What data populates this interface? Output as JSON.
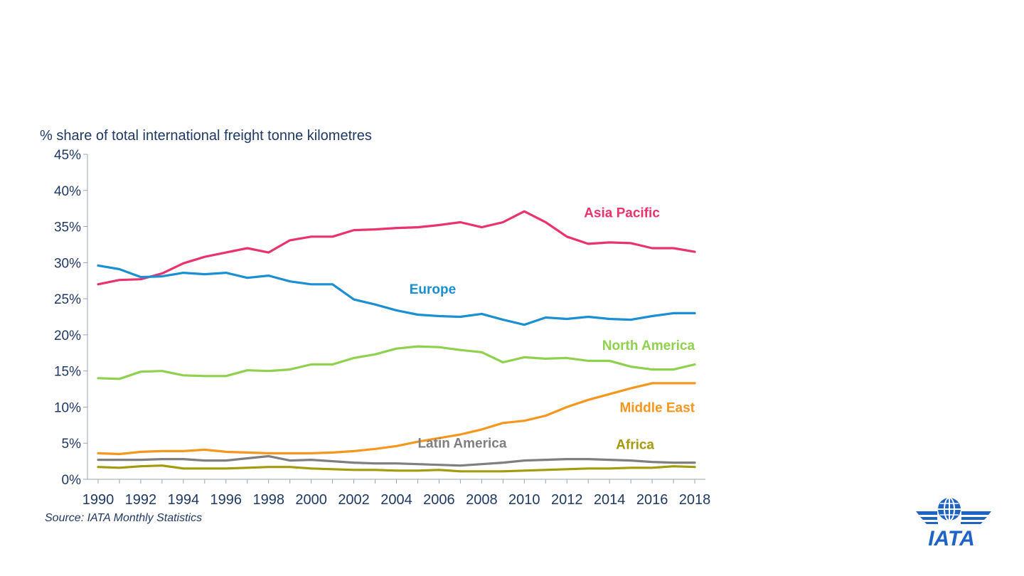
{
  "chart_data": {
    "type": "line",
    "title": "",
    "ylabel": "% share of total international freight tonne kilometres",
    "xlabel": "",
    "ylim": [
      0,
      45
    ],
    "yticks": [
      0,
      5,
      10,
      15,
      20,
      25,
      30,
      35,
      40,
      45
    ],
    "ytick_labels": [
      "0%",
      "5%",
      "10%",
      "15%",
      "20%",
      "25%",
      "30%",
      "35%",
      "40%",
      "45%"
    ],
    "xlim": [
      1989.5,
      2018.5
    ],
    "xticks": [
      1990,
      1992,
      1994,
      1996,
      1998,
      2000,
      2002,
      2004,
      2006,
      2008,
      2010,
      2012,
      2014,
      2016,
      2018
    ],
    "x": [
      1990,
      1991,
      1992,
      1993,
      1994,
      1995,
      1996,
      1997,
      1998,
      1999,
      2000,
      2001,
      2002,
      2003,
      2004,
      2005,
      2006,
      2007,
      2008,
      2009,
      2010,
      2011,
      2012,
      2013,
      2014,
      2015,
      2016,
      2017,
      2018
    ],
    "grid": false,
    "legend": "inline labels",
    "series": [
      {
        "name": "Asia Pacific",
        "color": "#e8336d",
        "values": [
          27.0,
          27.6,
          27.7,
          28.5,
          29.9,
          30.8,
          31.4,
          32.0,
          31.4,
          33.1,
          33.6,
          33.6,
          34.5,
          34.6,
          34.8,
          34.9,
          35.2,
          35.6,
          34.9,
          35.6,
          37.1,
          35.6,
          33.6,
          32.6,
          32.8,
          32.7,
          32.0,
          32.0,
          31.5
        ]
      },
      {
        "name": "Europe",
        "color": "#1a8fd1",
        "values": [
          29.6,
          29.1,
          28.0,
          28.1,
          28.6,
          28.4,
          28.6,
          27.9,
          28.2,
          27.4,
          27.0,
          27.0,
          24.9,
          24.2,
          23.4,
          22.8,
          22.6,
          22.5,
          22.9,
          22.1,
          21.4,
          22.4,
          22.2,
          22.5,
          22.2,
          22.1,
          22.6,
          23.0,
          23.0
        ]
      },
      {
        "name": "North America",
        "color": "#8fd14f",
        "values": [
          14.0,
          13.9,
          14.9,
          15.0,
          14.4,
          14.3,
          14.3,
          15.1,
          15.0,
          15.2,
          15.9,
          15.9,
          16.8,
          17.3,
          18.1,
          18.4,
          18.3,
          17.9,
          17.6,
          16.2,
          16.9,
          16.7,
          16.8,
          16.4,
          16.4,
          15.6,
          15.2,
          15.2,
          15.9
        ]
      },
      {
        "name": "Middle East",
        "color": "#f5961e",
        "values": [
          3.6,
          3.5,
          3.8,
          3.9,
          3.9,
          4.1,
          3.8,
          3.7,
          3.6,
          3.6,
          3.6,
          3.7,
          3.9,
          4.2,
          4.6,
          5.2,
          5.7,
          6.2,
          6.9,
          7.8,
          8.1,
          8.8,
          10.0,
          11.0,
          11.8,
          12.6,
          13.3,
          13.3,
          13.3
        ]
      },
      {
        "name": "Latin America",
        "color": "#7f7f7f",
        "values": [
          2.7,
          2.7,
          2.7,
          2.8,
          2.8,
          2.6,
          2.6,
          2.9,
          3.2,
          2.6,
          2.7,
          2.5,
          2.3,
          2.2,
          2.2,
          2.1,
          2.0,
          1.9,
          2.1,
          2.3,
          2.6,
          2.7,
          2.8,
          2.8,
          2.7,
          2.6,
          2.4,
          2.3,
          2.3
        ]
      },
      {
        "name": "Africa",
        "color": "#a39a0c",
        "values": [
          1.7,
          1.6,
          1.8,
          1.9,
          1.5,
          1.5,
          1.5,
          1.6,
          1.7,
          1.7,
          1.5,
          1.4,
          1.3,
          1.3,
          1.2,
          1.2,
          1.3,
          1.1,
          1.1,
          1.1,
          1.2,
          1.3,
          1.4,
          1.5,
          1.5,
          1.6,
          1.6,
          1.8,
          1.7
        ]
      }
    ]
  },
  "source_text": "Source: IATA Monthly Statistics",
  "logo": {
    "text": "IATA",
    "color": "#1e63c6"
  }
}
